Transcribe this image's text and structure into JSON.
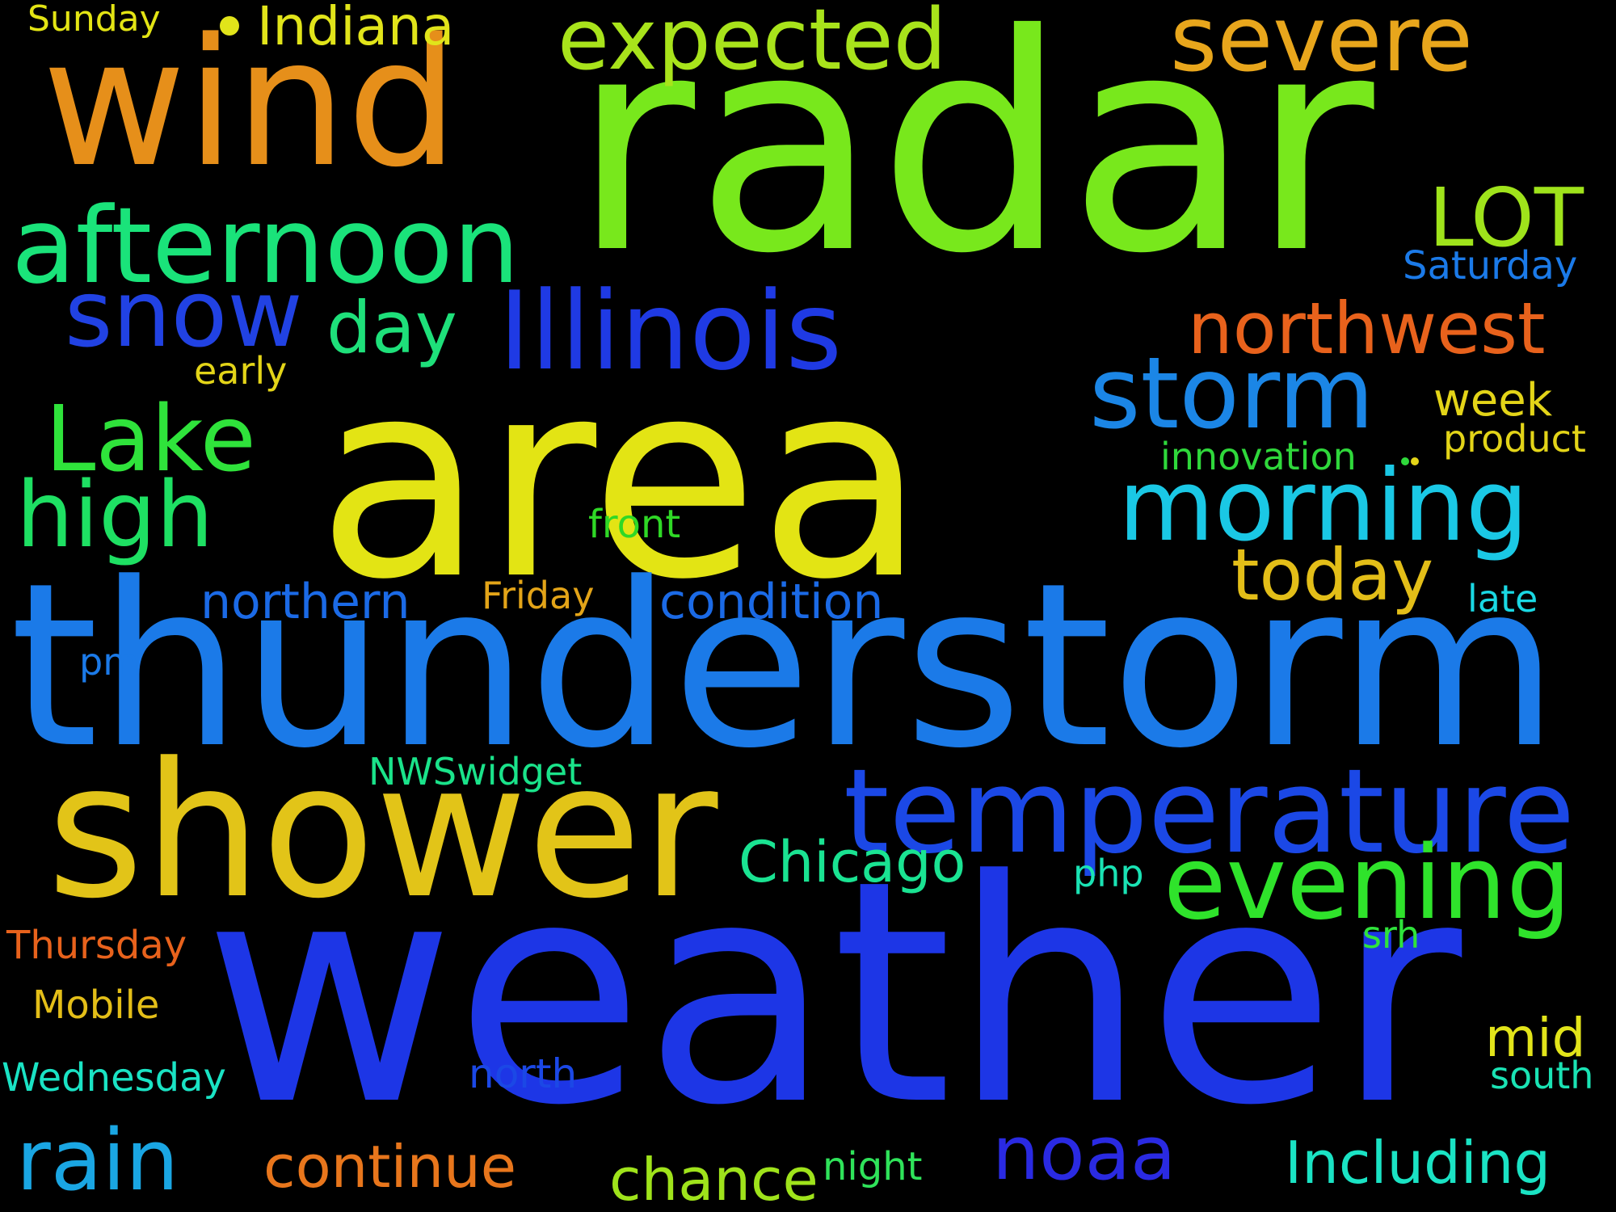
{
  "words": [
    {
      "id": "radar",
      "text": "radar",
      "color": "#78e81c"
    },
    {
      "id": "area",
      "text": "area",
      "color": "#e3e414"
    },
    {
      "id": "thunderstorm",
      "text": "thunderstorm",
      "color": "#1b7ae8"
    },
    {
      "id": "weather",
      "text": "weather",
      "color": "#1d36e6"
    },
    {
      "id": "shower",
      "text": "shower",
      "color": "#e2c418"
    },
    {
      "id": "wind",
      "text": "wind",
      "color": "#e68f1a"
    },
    {
      "id": "temperature",
      "text": "temperature",
      "color": "#1b48e6"
    },
    {
      "id": "afternoon",
      "text": "afternoon",
      "color": "#1ae37a"
    },
    {
      "id": "illinois",
      "text": "Illinois",
      "color": "#1f3ae4"
    },
    {
      "id": "evening",
      "text": "evening",
      "color": "#2fe32b"
    },
    {
      "id": "morning",
      "text": "morning",
      "color": "#1ac8e5"
    },
    {
      "id": "storm",
      "text": "storm",
      "color": "#1b86e6"
    },
    {
      "id": "severe",
      "text": "severe",
      "color": "#e8a61c"
    },
    {
      "id": "expected",
      "text": "expected",
      "color": "#a8e31b"
    },
    {
      "id": "snow",
      "text": "snow",
      "color": "#2142e3"
    },
    {
      "id": "lake",
      "text": "Lake",
      "color": "#2fe33b"
    },
    {
      "id": "high",
      "text": "high",
      "color": "#1ee063"
    },
    {
      "id": "rain",
      "text": "rain",
      "color": "#1aa6e3"
    },
    {
      "id": "northwest",
      "text": "northwest",
      "color": "#e8621c"
    },
    {
      "id": "noaa",
      "text": "noaa",
      "color": "#2a2ae2"
    },
    {
      "id": "lot",
      "text": "LOT",
      "color": "#9fe31b"
    },
    {
      "id": "today",
      "text": "today",
      "color": "#e3be18"
    },
    {
      "id": "including",
      "text": "Including",
      "color": "#1ae3c4"
    },
    {
      "id": "continue",
      "text": "continue",
      "color": "#e8761c"
    },
    {
      "id": "chance",
      "text": "chance",
      "color": "#9fe31b"
    },
    {
      "id": "day",
      "text": "day",
      "color": "#1ee07a"
    },
    {
      "id": "condition",
      "text": "condition",
      "color": "#1b6ae6"
    },
    {
      "id": "chicago",
      "text": "Chicago",
      "color": "#1ae392"
    },
    {
      "id": "northern",
      "text": "northern",
      "color": "#1b6ae6"
    },
    {
      "id": "indiana",
      "text": "Indiana",
      "color": "#e1e41a"
    },
    {
      "id": "week",
      "text": "week",
      "color": "#e3d418"
    },
    {
      "id": "mid",
      "text": "mid",
      "color": "#e2e41a"
    },
    {
      "id": "front",
      "text": "front",
      "color": "#2fd826"
    },
    {
      "id": "friday",
      "text": "Friday",
      "color": "#e3a418"
    },
    {
      "id": "nwswidget",
      "text": "NWSwidget",
      "color": "#1ae38a"
    },
    {
      "id": "early",
      "text": "early",
      "color": "#e3d418"
    },
    {
      "id": "innovation",
      "text": "innovation",
      "color": "#2fd83b"
    },
    {
      "id": "product",
      "text": "product",
      "color": "#e3d418"
    },
    {
      "id": "saturday",
      "text": "Saturday",
      "color": "#1b7ae8"
    },
    {
      "id": "thursday",
      "text": "Thursday",
      "color": "#e8621c"
    },
    {
      "id": "mobile",
      "text": "Mobile",
      "color": "#e3be18"
    },
    {
      "id": "wednesday",
      "text": "Wednesday",
      "color": "#1ae3c4"
    },
    {
      "id": "north",
      "text": "north",
      "color": "#1b48e6"
    },
    {
      "id": "night",
      "text": "night",
      "color": "#2fe35a"
    },
    {
      "id": "south",
      "text": "south",
      "color": "#1ae3b4"
    },
    {
      "id": "late",
      "text": "late",
      "color": "#1ad8e3"
    },
    {
      "id": "pm",
      "text": "pm",
      "color": "#1b7ae8"
    },
    {
      "id": "php",
      "text": "php",
      "color": "#1ae3b4"
    },
    {
      "id": "srh",
      "text": "srh",
      "color": "#2fe33b"
    },
    {
      "id": "sunday",
      "text": "Sunday",
      "color": "#e3e414"
    }
  ],
  "dots": [
    {
      "id": "dot-indiana",
      "color": "#e1e41a"
    },
    {
      "id": "dot-innovation",
      "color": "#2fd83b"
    },
    {
      "id": "dot-product",
      "color": "#e3d418"
    }
  ]
}
